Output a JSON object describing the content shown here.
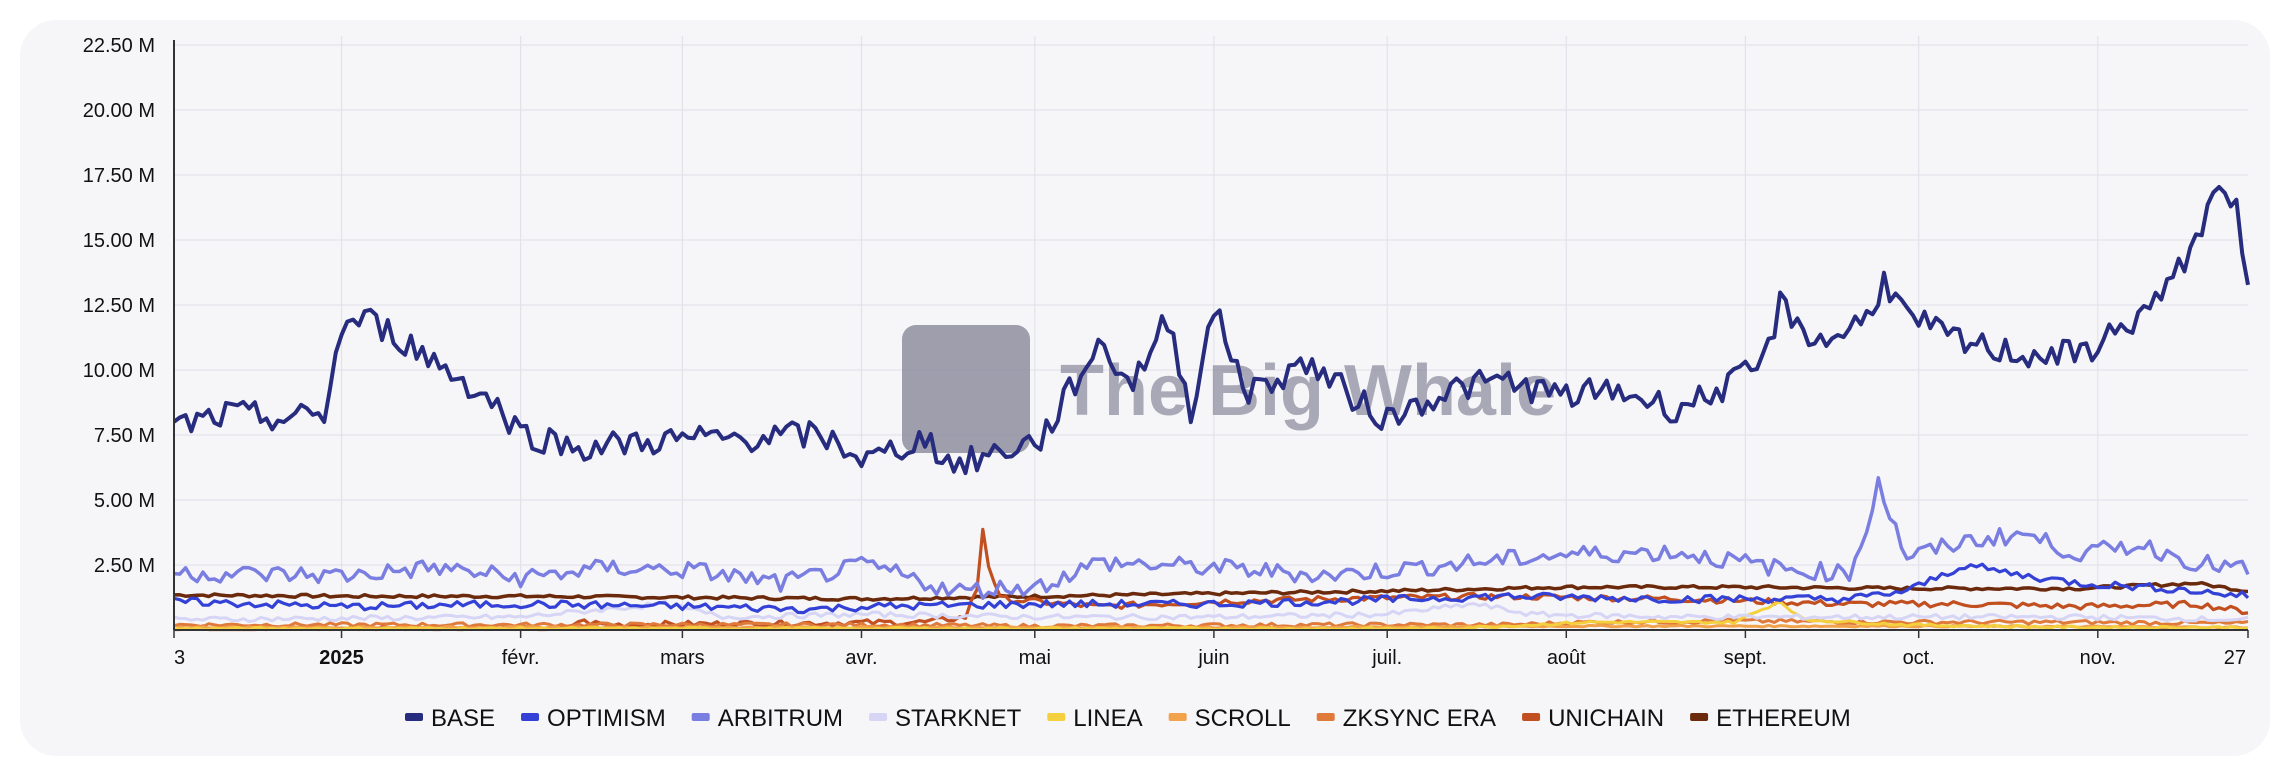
{
  "chart_data": {
    "type": "line",
    "title": "",
    "xlabel": "",
    "ylabel": "",
    "grid": true,
    "legend_position": "bottom",
    "x_range": [
      "3 déc. 2024",
      "27 nov. 2025"
    ],
    "ylim": [
      0,
      22.5
    ],
    "y_unit": "M",
    "y_ticks": [
      {
        "value": 2.5,
        "label": "2.50 M"
      },
      {
        "value": 5.0,
        "label": "5.00 M"
      },
      {
        "value": 7.5,
        "label": "7.50 M"
      },
      {
        "value": 10.0,
        "label": "10.00 M"
      },
      {
        "value": 12.5,
        "label": "12.50 M"
      },
      {
        "value": 15.0,
        "label": "15.00 M"
      },
      {
        "value": 17.5,
        "label": "17.50 M"
      },
      {
        "value": 20.0,
        "label": "20.00 M"
      },
      {
        "value": 22.5,
        "label": "22.50 M"
      }
    ],
    "x_ticks": [
      {
        "day": 0,
        "label": "3",
        "bold": false
      },
      {
        "day": 29,
        "label": "2025",
        "bold": true
      },
      {
        "day": 60,
        "label": "févr.",
        "bold": false
      },
      {
        "day": 88,
        "label": "mars",
        "bold": false
      },
      {
        "day": 119,
        "label": "avr.",
        "bold": false
      },
      {
        "day": 149,
        "label": "mai",
        "bold": false
      },
      {
        "day": 180,
        "label": "juin",
        "bold": false
      },
      {
        "day": 210,
        "label": "juil.",
        "bold": false
      },
      {
        "day": 241,
        "label": "août",
        "bold": false
      },
      {
        "day": 272,
        "label": "sept.",
        "bold": false
      },
      {
        "day": 302,
        "label": "oct.",
        "bold": false
      },
      {
        "day": 333,
        "label": "nov.",
        "bold": false
      },
      {
        "day": 359,
        "label": "27",
        "bold": false
      }
    ],
    "watermark": "The Big Whale",
    "series": [
      {
        "name": "ETHEREUM",
        "color": "#6b2a0c",
        "keypoints": [
          [
            0,
            1.35
          ],
          [
            30,
            1.3
          ],
          [
            60,
            1.3
          ],
          [
            90,
            1.25
          ],
          [
            120,
            1.2
          ],
          [
            150,
            1.3
          ],
          [
            180,
            1.4
          ],
          [
            210,
            1.5
          ],
          [
            240,
            1.65
          ],
          [
            270,
            1.65
          ],
          [
            300,
            1.6
          ],
          [
            330,
            1.6
          ],
          [
            350,
            1.8
          ],
          [
            359,
            1.5
          ]
        ]
      },
      {
        "name": "UNICHAIN",
        "color": "#c14f1f",
        "keypoints": [
          [
            0,
            0.05
          ],
          [
            68,
            0.05
          ],
          [
            70,
            0.35
          ],
          [
            75,
            0.2
          ],
          [
            100,
            0.25
          ],
          [
            130,
            0.3
          ],
          [
            137,
            0.5
          ],
          [
            139,
            1.6
          ],
          [
            140,
            3.9
          ],
          [
            141,
            2.5
          ],
          [
            143,
            1.2
          ],
          [
            160,
            0.9
          ],
          [
            180,
            1.1
          ],
          [
            200,
            1.2
          ],
          [
            230,
            1.3
          ],
          [
            260,
            1.2
          ],
          [
            290,
            1.0
          ],
          [
            310,
            1.0
          ],
          [
            330,
            0.9
          ],
          [
            350,
            1.0
          ],
          [
            359,
            0.7
          ]
        ]
      },
      {
        "name": "ZKSYNC ERA",
        "color": "#e07a3a",
        "keypoints": [
          [
            0,
            0.2
          ],
          [
            60,
            0.2
          ],
          [
            120,
            0.2
          ],
          [
            150,
            0.15
          ],
          [
            200,
            0.2
          ],
          [
            230,
            0.2
          ],
          [
            245,
            0.3
          ],
          [
            270,
            0.35
          ],
          [
            300,
            0.3
          ],
          [
            330,
            0.3
          ],
          [
            359,
            0.25
          ]
        ]
      },
      {
        "name": "SCROLL",
        "color": "#f1a24a",
        "keypoints": [
          [
            0,
            0.1
          ],
          [
            100,
            0.1
          ],
          [
            200,
            0.1
          ],
          [
            240,
            0.15
          ],
          [
            300,
            0.15
          ],
          [
            359,
            0.1
          ]
        ]
      },
      {
        "name": "LINEA",
        "color": "#f4d03f",
        "keypoints": [
          [
            0,
            0.05
          ],
          [
            150,
            0.05
          ],
          [
            220,
            0.05
          ],
          [
            245,
            0.3
          ],
          [
            270,
            0.3
          ],
          [
            278,
            1.1
          ],
          [
            282,
            0.4
          ],
          [
            300,
            0.2
          ],
          [
            330,
            0.1
          ],
          [
            359,
            0.1
          ]
        ]
      },
      {
        "name": "STARKNET",
        "color": "#d6d5f5",
        "keypoints": [
          [
            0,
            0.4
          ],
          [
            60,
            0.5
          ],
          [
            85,
            1.0
          ],
          [
            95,
            0.5
          ],
          [
            120,
            0.6
          ],
          [
            150,
            0.5
          ],
          [
            180,
            0.5
          ],
          [
            210,
            0.6
          ],
          [
            225,
            1.0
          ],
          [
            235,
            0.6
          ],
          [
            260,
            0.5
          ],
          [
            300,
            0.5
          ],
          [
            330,
            0.5
          ],
          [
            359,
            0.4
          ]
        ]
      },
      {
        "name": "OPTIMISM",
        "color": "#3341d6",
        "keypoints": [
          [
            0,
            1.1
          ],
          [
            30,
            0.9
          ],
          [
            60,
            1.0
          ],
          [
            90,
            0.9
          ],
          [
            110,
            0.8
          ],
          [
            120,
            0.9
          ],
          [
            150,
            1.0
          ],
          [
            180,
            1.0
          ],
          [
            200,
            1.1
          ],
          [
            230,
            1.3
          ],
          [
            260,
            1.2
          ],
          [
            290,
            1.2
          ],
          [
            300,
            1.5
          ],
          [
            310,
            2.5
          ],
          [
            320,
            2.1
          ],
          [
            330,
            1.8
          ],
          [
            345,
            1.6
          ],
          [
            359,
            1.3
          ]
        ]
      },
      {
        "name": "ARBITRUM",
        "color": "#7a7ee0",
        "keypoints": [
          [
            0,
            2.2
          ],
          [
            30,
            2.1
          ],
          [
            45,
            2.4
          ],
          [
            60,
            2.0
          ],
          [
            75,
            2.4
          ],
          [
            90,
            2.3
          ],
          [
            105,
            1.8
          ],
          [
            120,
            2.5
          ],
          [
            135,
            1.5
          ],
          [
            150,
            1.7
          ],
          [
            160,
            2.6
          ],
          [
            180,
            2.4
          ],
          [
            200,
            2.1
          ],
          [
            220,
            2.5
          ],
          [
            240,
            2.9
          ],
          [
            260,
            3.0
          ],
          [
            280,
            2.3
          ],
          [
            290,
            2.2
          ],
          [
            293,
            3.9
          ],
          [
            295,
            5.8
          ],
          [
            297,
            4.4
          ],
          [
            300,
            2.8
          ],
          [
            310,
            3.4
          ],
          [
            320,
            3.7
          ],
          [
            330,
            2.9
          ],
          [
            340,
            3.3
          ],
          [
            350,
            2.6
          ],
          [
            359,
            2.3
          ]
        ]
      },
      {
        "name": "BASE",
        "color": "#272c7e",
        "keypoints": [
          [
            0,
            7.8
          ],
          [
            10,
            8.3
          ],
          [
            20,
            8.1
          ],
          [
            26,
            8.3
          ],
          [
            29,
            11.6
          ],
          [
            33,
            12.0
          ],
          [
            40,
            11.1
          ],
          [
            50,
            9.6
          ],
          [
            56,
            8.6
          ],
          [
            60,
            7.6
          ],
          [
            70,
            7.0
          ],
          [
            85,
            7.3
          ],
          [
            100,
            7.4
          ],
          [
            110,
            7.5
          ],
          [
            115,
            7.2
          ],
          [
            120,
            6.5
          ],
          [
            130,
            7.4
          ],
          [
            135,
            6.3
          ],
          [
            145,
            7.0
          ],
          [
            150,
            7.3
          ],
          [
            160,
            11.0
          ],
          [
            166,
            9.5
          ],
          [
            172,
            12.0
          ],
          [
            176,
            8.5
          ],
          [
            180,
            12.3
          ],
          [
            186,
            9.1
          ],
          [
            196,
            10.3
          ],
          [
            205,
            8.8
          ],
          [
            210,
            8.1
          ],
          [
            216,
            8.8
          ],
          [
            222,
            9.3
          ],
          [
            230,
            9.6
          ],
          [
            240,
            9.0
          ],
          [
            250,
            9.2
          ],
          [
            260,
            8.5
          ],
          [
            270,
            9.5
          ],
          [
            275,
            10.2
          ],
          [
            278,
            12.5
          ],
          [
            285,
            11.0
          ],
          [
            293,
            12.0
          ],
          [
            296,
            13.5
          ],
          [
            300,
            12.0
          ],
          [
            310,
            11.0
          ],
          [
            320,
            10.6
          ],
          [
            330,
            10.6
          ],
          [
            338,
            11.7
          ],
          [
            345,
            13.0
          ],
          [
            352,
            16.0
          ],
          [
            355,
            17.3
          ],
          [
            357,
            16.0
          ],
          [
            359,
            12.8
          ]
        ]
      }
    ]
  }
}
